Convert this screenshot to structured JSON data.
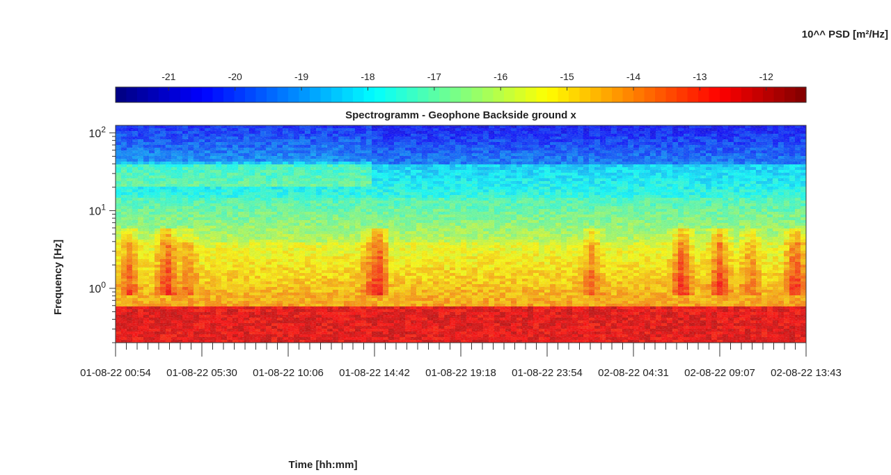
{
  "chart_data": {
    "type": "heatmap",
    "title": "Spectrogramm - Geophone Backside ground x",
    "xlabel": "Time [hh:mm]",
    "ylabel": "Frequency [Hz]",
    "colorbar": {
      "label": "10^^ PSD [m²/Hz]",
      "ticks": [
        -21,
        -20,
        -19,
        -18,
        -17,
        -16,
        -15,
        -14,
        -13,
        -12
      ],
      "range": [
        -21.8,
        -11.4
      ],
      "colormap": "jet",
      "location": "top"
    },
    "x": {
      "tick_labels": [
        "01-08-22  00:54",
        "01-08-22  05:30",
        "01-08-22  10:06",
        "01-08-22  14:42",
        "01-08-22  19:18",
        "01-08-22  23:54",
        "02-08-22  04:31",
        "02-08-22  09:07",
        "02-08-22  13:43"
      ],
      "start": "01-08-22 00:54",
      "end": "02-08-22 13:43"
    },
    "y": {
      "scale": "log",
      "range": [
        0.2,
        125
      ],
      "tick_labels": [
        {
          "value": 1,
          "label": "10",
          "exp": "0"
        },
        {
          "value": 10,
          "label": "10",
          "exp": "1"
        },
        {
          "value": 100,
          "label": "10",
          "exp": "2"
        }
      ]
    },
    "features": [
      {
        "description": "strong red band",
        "freq_range": [
          0.2,
          0.6
        ],
        "psd": -12.5
      },
      {
        "description": "orange-yellow band",
        "freq_range": [
          0.6,
          4
        ],
        "psd": -14.5
      },
      {
        "description": "green band",
        "freq_range": [
          4,
          15
        ],
        "psd": -16.5
      },
      {
        "description": "cyan band",
        "freq_range": [
          15,
          40
        ],
        "psd": -18
      },
      {
        "description": "blue band",
        "freq_range": [
          40,
          125
        ],
        "psd": -20
      }
    ],
    "grid": false
  }
}
